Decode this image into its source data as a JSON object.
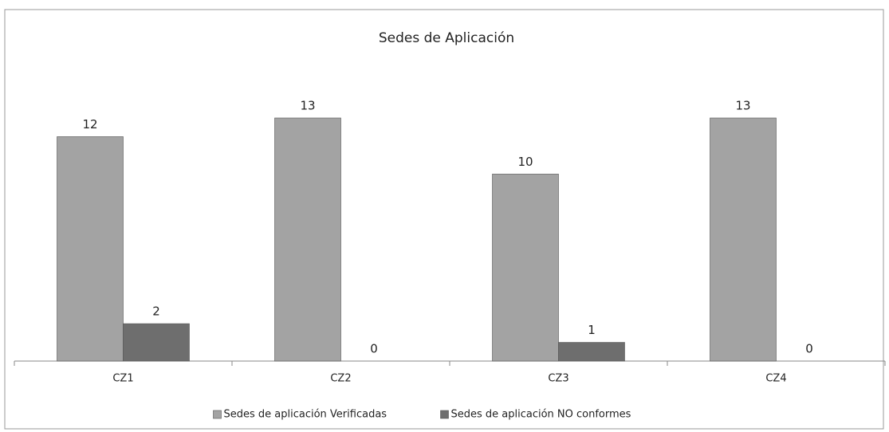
{
  "chart_data": {
    "type": "bar",
    "title": "Sedes de Aplicación",
    "categories": [
      "CZ1",
      "CZ2",
      "CZ3",
      "CZ4"
    ],
    "series": [
      {
        "name": "Sedes de aplicación Verificadas",
        "color": "#a3a3a3",
        "values": [
          12,
          13,
          10,
          13
        ]
      },
      {
        "name": "Sedes de aplicación NO conformes",
        "color": "#6e6e6e",
        "values": [
          2,
          0,
          1,
          0
        ]
      }
    ],
    "legend": "bottom"
  }
}
